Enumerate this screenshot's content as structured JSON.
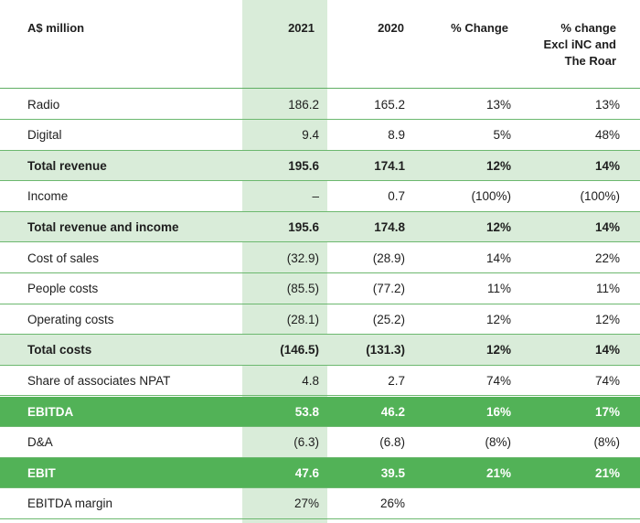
{
  "header": {
    "label": "A$ million",
    "col_2021": "2021",
    "col_2020": "2020",
    "col_change": "% Change",
    "col_excl_line1": "% change",
    "col_excl_line2": "Excl iNC and",
    "col_excl_line3": "The Roar"
  },
  "rows": [
    {
      "label": "Radio",
      "v2021": "186.2",
      "v2020": "165.2",
      "chg": "13%",
      "excl": "13%",
      "style": "normal"
    },
    {
      "label": "Digital",
      "v2021": "9.4",
      "v2020": "8.9",
      "chg": "5%",
      "excl": "48%",
      "style": "normal"
    },
    {
      "label": "Total revenue",
      "v2021": "195.6",
      "v2020": "174.1",
      "chg": "12%",
      "excl": "14%",
      "style": "total"
    },
    {
      "label": "Income",
      "v2021": "–",
      "v2020": "0.7",
      "chg": "(100%)",
      "excl": "(100%)",
      "style": "normal"
    },
    {
      "label": "Total revenue and income",
      "v2021": "195.6",
      "v2020": "174.8",
      "chg": "12%",
      "excl": "14%",
      "style": "total"
    },
    {
      "label": "Cost of sales",
      "v2021": "(32.9)",
      "v2020": "(28.9)",
      "chg": "14%",
      "excl": "22%",
      "style": "normal"
    },
    {
      "label": "People costs",
      "v2021": "(85.5)",
      "v2020": "(77.2)",
      "chg": "11%",
      "excl": "11%",
      "style": "normal"
    },
    {
      "label": "Operating costs",
      "v2021": "(28.1)",
      "v2020": "(25.2)",
      "chg": "12%",
      "excl": "12%",
      "style": "normal"
    },
    {
      "label": "Total costs",
      "v2021": "(146.5)",
      "v2020": "(131.3)",
      "chg": "12%",
      "excl": "14%",
      "style": "total"
    },
    {
      "label": "Share of associates NPAT",
      "v2021": "4.8",
      "v2020": "2.7",
      "chg": "74%",
      "excl": "74%",
      "style": "normal"
    },
    {
      "label": "EBITDA",
      "v2021": "53.8",
      "v2020": "46.2",
      "chg": "16%",
      "excl": "17%",
      "style": "strong"
    },
    {
      "label": "D&A",
      "v2021": "(6.3)",
      "v2020": "(6.8)",
      "chg": "(8%)",
      "excl": "(8%)",
      "style": "normal"
    },
    {
      "label": "EBIT",
      "v2021": "47.6",
      "v2020": "39.5",
      "chg": "21%",
      "excl": "21%",
      "style": "strong"
    },
    {
      "label": "EBITDA margin",
      "v2021": "27%",
      "v2020": "26%",
      "chg": "",
      "excl": "",
      "style": "normal"
    }
  ],
  "colors": {
    "highlight_light_green": "#d9ecd9",
    "highlight_strong_green": "#52b257",
    "rule_green": "#6cb86f"
  }
}
